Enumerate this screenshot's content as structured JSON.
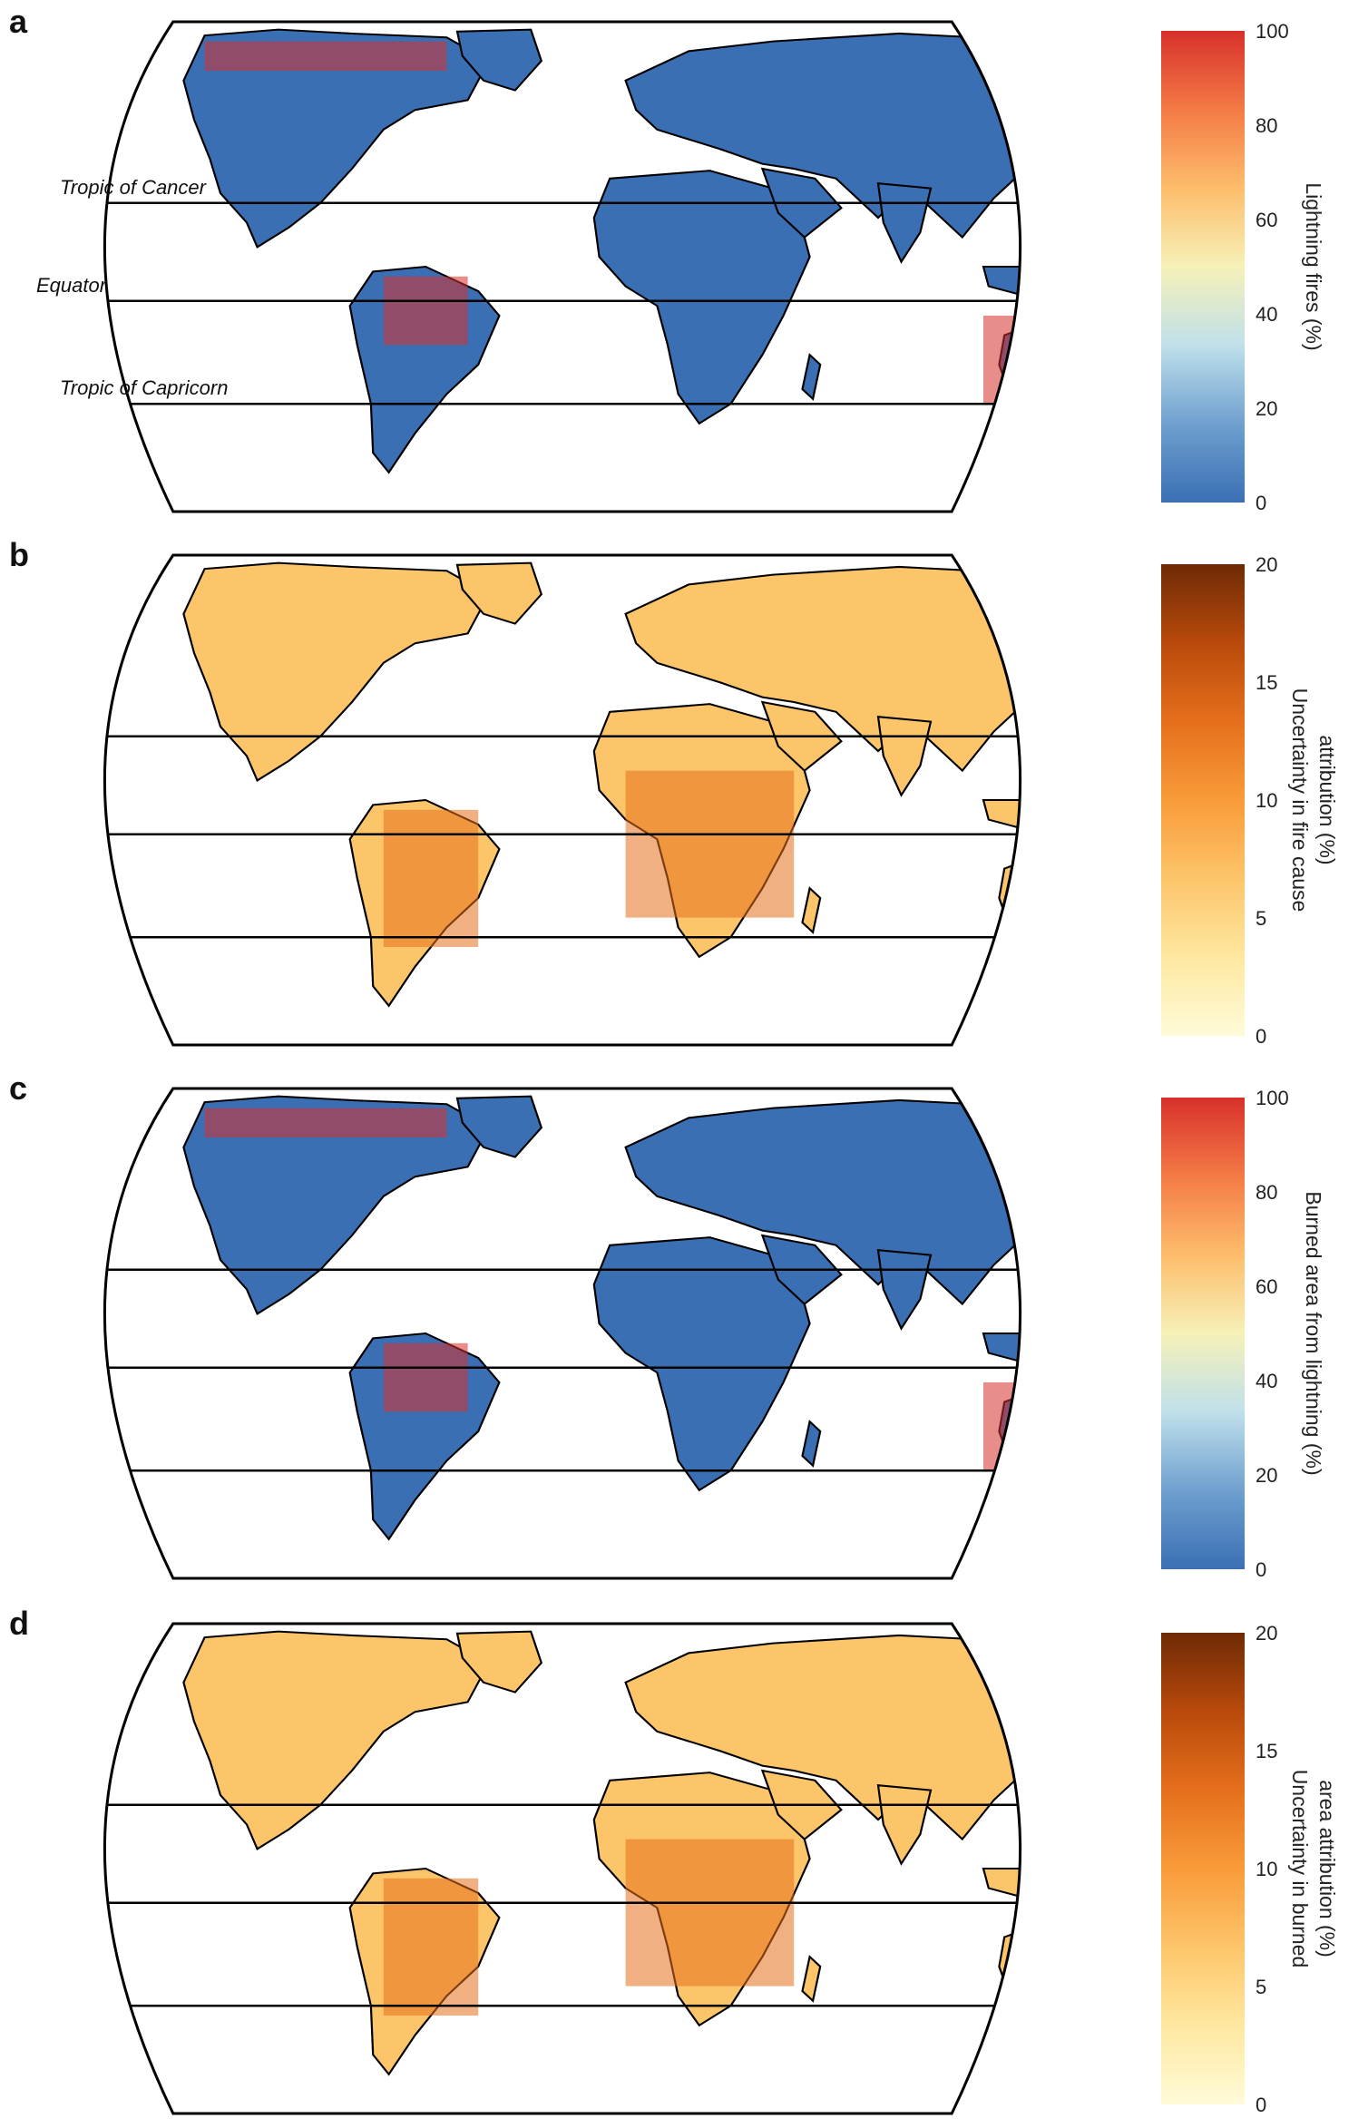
{
  "figure": {
    "panels": [
      {
        "id": "a",
        "letter": "a",
        "colorbar": {
          "label_lines": [
            "Lightning fires (%)"
          ],
          "scheme": "diverging",
          "ticks": [
            "0",
            "20",
            "40",
            "60",
            "80",
            "100"
          ]
        },
        "reference_lines": [
          "Tropic of Cancer",
          "Equator",
          "Tropic of Capricorn"
        ]
      },
      {
        "id": "b",
        "letter": "b",
        "colorbar": {
          "label_lines": [
            "Uncertainty in fire cause",
            "attribution (%)"
          ],
          "scheme": "sequential",
          "ticks": [
            "0",
            "5",
            "10",
            "15",
            "20"
          ]
        }
      },
      {
        "id": "c",
        "letter": "c",
        "colorbar": {
          "label_lines": [
            "Burned area from lightning (%)"
          ],
          "scheme": "diverging",
          "ticks": [
            "0",
            "20",
            "40",
            "60",
            "80",
            "100"
          ]
        }
      },
      {
        "id": "d",
        "letter": "d",
        "colorbar": {
          "label_lines": [
            "Uncertainty in burned",
            "area attribution (%)"
          ],
          "scheme": "sequential",
          "ticks": [
            "0",
            "5",
            "10",
            "15",
            "20"
          ]
        }
      }
    ]
  },
  "colors": {
    "diverging": [
      "#3b6fb4",
      "#6fa0cf",
      "#bfe0ea",
      "#f6f1b8",
      "#fdbd6b",
      "#f47a45",
      "#d7302a"
    ],
    "sequential": [
      "#fffbd9",
      "#fee8a0",
      "#fdc56a",
      "#f99b3a",
      "#e56f1c",
      "#b94a0b",
      "#6e2a06"
    ],
    "ocean": "#ffffff",
    "line": "#000000"
  }
}
